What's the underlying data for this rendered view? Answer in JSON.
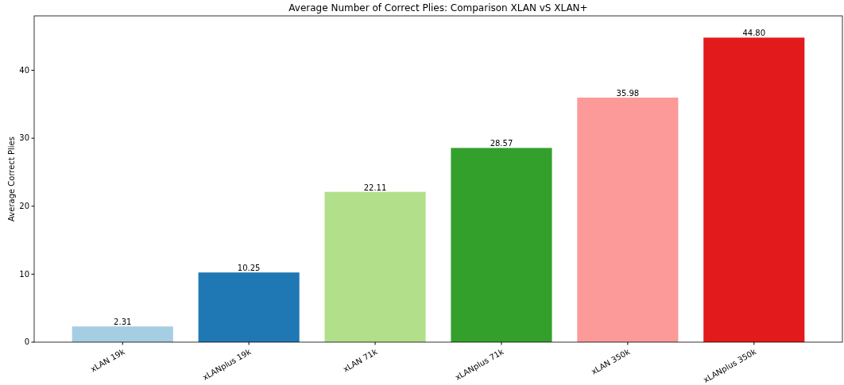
{
  "chart_data": {
    "type": "bar",
    "title": "Average Number of Correct Plies: Comparison XLAN vS XLAN+",
    "ylabel": "Average Correct Plies",
    "categories": [
      "xLAN 19k",
      "xLANplus 19k",
      "xLAN 71k",
      "xLANplus 71k",
      "xLAN 350k",
      "xLANplus 350k"
    ],
    "values": [
      2.31,
      10.25,
      22.11,
      28.57,
      35.98,
      44.8
    ],
    "value_labels": [
      "2.31",
      "10.25",
      "22.11",
      "28.57",
      "35.98",
      "44.80"
    ],
    "colors": [
      "#a6cee3",
      "#1f78b4",
      "#b2df8a",
      "#33a02c",
      "#fb9a99",
      "#e31a1c"
    ],
    "ylim": [
      0,
      48
    ],
    "yticks": [
      0,
      10,
      20,
      30,
      40
    ]
  }
}
